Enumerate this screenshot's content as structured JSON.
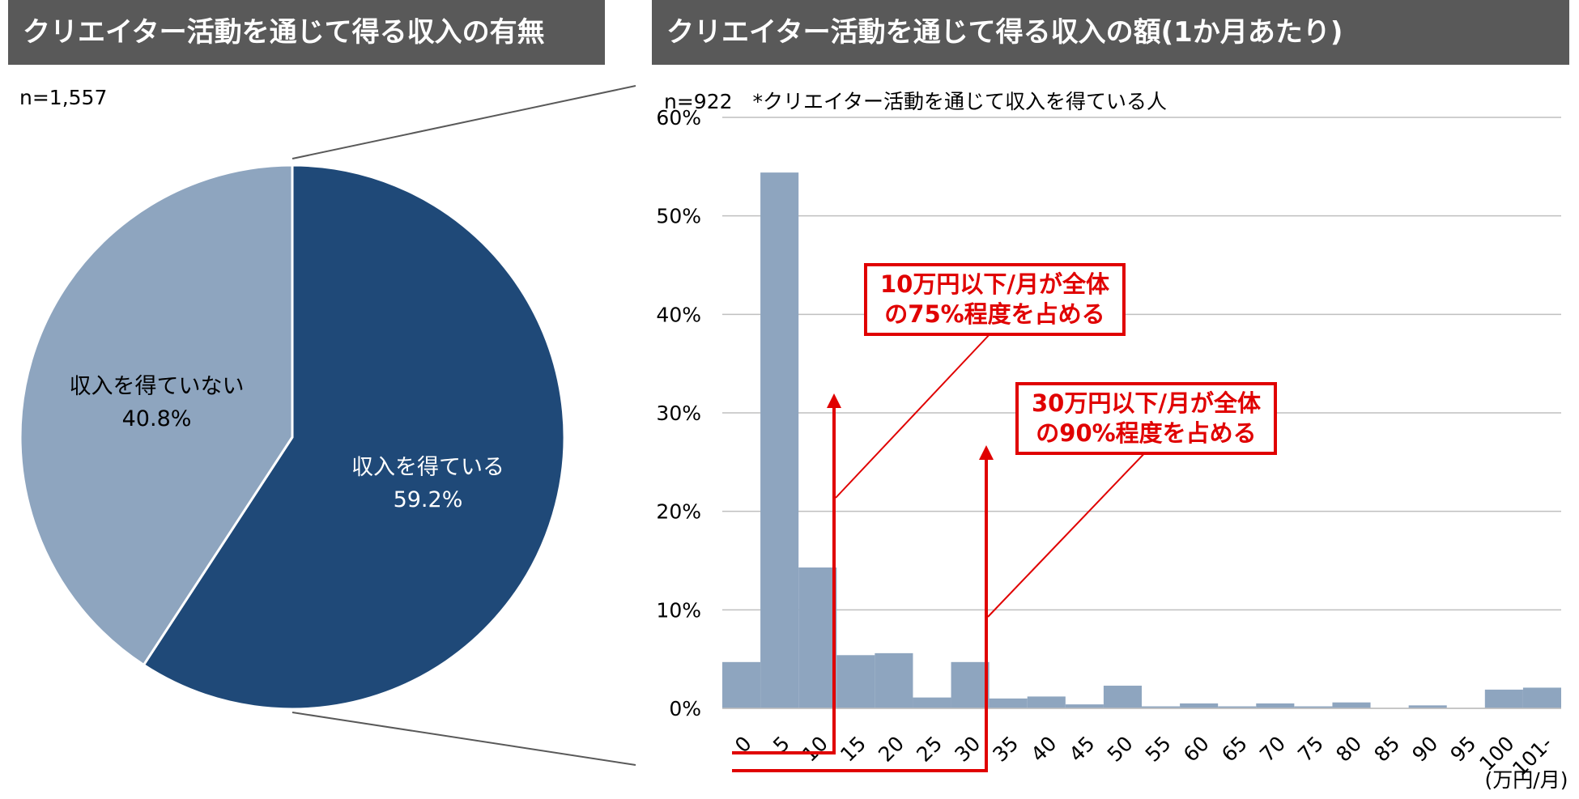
{
  "left_panel": {
    "title": "クリエイター活動を通じて得る収入の有無",
    "sample_note": "n=1,557"
  },
  "right_panel": {
    "title": "クリエイター活動を通じて得る収入の額(1か月あたり)",
    "sample_note": "n=922　*クリエイター活動を通じて収入を得ている人"
  },
  "callouts": [
    {
      "line1": "10万円以下/月が全体",
      "line2": "の75%程度を占める"
    },
    {
      "line1": "30万円以下/月が全体",
      "line2": "の90%程度を占める"
    }
  ],
  "colors": {
    "dark": "#1f4978",
    "light": "#8ea5bf",
    "accent": "#e00000",
    "header_bg": "#595959"
  },
  "chart_data": [
    {
      "type": "pie",
      "title": "クリエイター活動を通じて得る収入の有無",
      "slices": [
        {
          "label": "収入を得ている",
          "value": 59.2,
          "value_label": "59.2%",
          "color": "#1f4978"
        },
        {
          "label": "収入を得ていない",
          "value": 40.8,
          "value_label": "40.8%",
          "color": "#8ea5bf"
        }
      ]
    },
    {
      "type": "bar",
      "title": "クリエイター活動を通じて得る収入の額(1か月あたり)",
      "xlabel": "(万円/月)",
      "ylabel": "",
      "ylim": [
        0,
        60
      ],
      "yticks": [
        "0%",
        "10%",
        "20%",
        "30%",
        "40%",
        "50%",
        "60%"
      ],
      "categories": [
        "0",
        "5",
        "10",
        "15",
        "20",
        "25",
        "30",
        "35",
        "40",
        "45",
        "50",
        "55",
        "60",
        "65",
        "70",
        "75",
        "80",
        "85",
        "90",
        "95",
        "100",
        "101-"
      ],
      "values": [
        4.7,
        54.4,
        14.3,
        5.4,
        5.6,
        1.1,
        4.7,
        1.0,
        1.2,
        0.4,
        2.3,
        0.2,
        0.5,
        0.2,
        0.5,
        0.2,
        0.6,
        0.0,
        0.3,
        0.0,
        1.9,
        2.1
      ],
      "grid": true
    }
  ]
}
